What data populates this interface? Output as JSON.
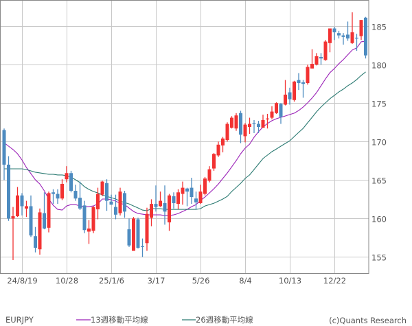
{
  "chart_data": {
    "type": "candlestick",
    "symbol": "EURJPY",
    "period": "weekly",
    "colors": {
      "up": "#f23232",
      "down": "#4d8bc0",
      "ma13": "#9b22b8",
      "ma26": "#2b7a72",
      "grid": "#c8c8c8"
    },
    "ylim": [
      152.9,
      188.4
    ],
    "y_ticks": [
      155,
      160,
      165,
      170,
      175,
      180,
      185
    ],
    "x_ticks": [
      {
        "date": "2024-08-19",
        "label": "24/8/19"
      },
      {
        "date": "2024-10-28",
        "label": "10/28"
      },
      {
        "date": "2025-01-06",
        "label": "25/1/6"
      },
      {
        "date": "2025-03-17",
        "label": "3/17"
      },
      {
        "date": "2025-05-26",
        "label": "5/26"
      },
      {
        "date": "2025-08-04",
        "label": "8/4"
      },
      {
        "date": "2025-10-13",
        "label": "10/13"
      },
      {
        "date": "2025-12-22",
        "label": "12/22"
      }
    ],
    "grid": true,
    "ohlc_fields": [
      "date",
      "open",
      "high",
      "low",
      "close"
    ],
    "candles": [
      [
        "2024-07-22",
        171.5,
        171.7,
        165.0,
        167.0
      ],
      [
        "2024-07-29",
        167.0,
        168.1,
        159.7,
        160.0
      ],
      [
        "2024-08-05",
        160.0,
        161.5,
        154.6,
        160.3
      ],
      [
        "2024-08-12",
        160.3,
        164.1,
        160.2,
        163.0
      ],
      [
        "2024-08-19",
        163.0,
        163.3,
        160.4,
        161.6
      ],
      [
        "2024-08-26",
        161.3,
        162.3,
        160.2,
        161.6
      ],
      [
        "2024-09-02",
        161.6,
        163.0,
        157.6,
        157.8
      ],
      [
        "2024-09-09",
        157.7,
        158.9,
        155.6,
        156.2
      ],
      [
        "2024-09-16",
        156.0,
        161.3,
        155.3,
        160.8
      ],
      [
        "2024-09-23",
        160.7,
        163.4,
        158.6,
        158.7
      ],
      [
        "2024-09-30",
        158.8,
        163.5,
        158.2,
        163.3
      ],
      [
        "2024-10-07",
        163.4,
        163.8,
        161.9,
        163.2
      ],
      [
        "2024-10-14",
        163.2,
        163.8,
        161.9,
        162.6
      ],
      [
        "2024-10-21",
        162.6,
        165.1,
        162.4,
        164.5
      ],
      [
        "2024-10-28",
        165.1,
        166.8,
        164.7,
        165.9
      ],
      [
        "2024-11-04",
        165.9,
        166.2,
        163.4,
        163.6
      ],
      [
        "2024-11-11",
        163.6,
        164.4,
        162.3,
        162.6
      ],
      [
        "2024-11-18",
        162.7,
        164.8,
        161.1,
        161.3
      ],
      [
        "2024-11-25",
        161.7,
        162.3,
        158.1,
        158.5
      ],
      [
        "2024-12-02",
        158.3,
        159.8,
        156.7,
        158.7
      ],
      [
        "2024-12-09",
        158.4,
        161.6,
        158.1,
        161.5
      ],
      [
        "2024-12-16",
        161.2,
        164.0,
        159.9,
        163.2
      ],
      [
        "2024-12-23",
        163.1,
        164.9,
        162.9,
        164.8
      ],
      [
        "2024-12-30",
        164.6,
        165.1,
        161.0,
        162.3
      ],
      [
        "2025-01-06",
        162.2,
        163.1,
        161.8,
        161.8
      ],
      [
        "2025-01-13",
        161.5,
        163.1,
        159.9,
        160.5
      ],
      [
        "2025-01-20",
        160.7,
        164.0,
        160.4,
        163.5
      ],
      [
        "2025-01-27",
        163.3,
        163.6,
        160.1,
        160.9
      ],
      [
        "2025-02-03",
        158.6,
        160.0,
        156.3,
        156.5
      ],
      [
        "2025-02-10",
        155.8,
        160.2,
        155.8,
        160.0
      ],
      [
        "2025-02-17",
        159.9,
        160.1,
        156.1,
        156.2
      ],
      [
        "2025-02-24",
        156.4,
        157.4,
        155.0,
        156.3
      ],
      [
        "2025-03-03",
        156.8,
        161.4,
        155.8,
        160.6
      ],
      [
        "2025-03-10",
        160.1,
        162.5,
        159.0,
        161.9
      ],
      [
        "2025-03-17",
        161.9,
        164.3,
        160.9,
        161.5
      ],
      [
        "2025-03-24",
        161.6,
        163.5,
        161.5,
        162.3
      ],
      [
        "2025-03-31",
        162.0,
        164.3,
        159.2,
        160.9
      ],
      [
        "2025-04-07",
        159.5,
        163.2,
        158.4,
        163.0
      ],
      [
        "2025-04-14",
        162.9,
        163.4,
        161.3,
        162.0
      ],
      [
        "2025-04-21",
        161.9,
        163.8,
        161.2,
        163.4
      ],
      [
        "2025-04-28",
        163.2,
        164.8,
        161.8,
        164.0
      ],
      [
        "2025-05-05",
        163.9,
        164.0,
        161.6,
        163.5
      ],
      [
        "2025-05-12",
        164.0,
        165.3,
        161.9,
        162.8
      ],
      [
        "2025-05-19",
        162.6,
        163.5,
        161.2,
        162.1
      ],
      [
        "2025-05-26",
        162.0,
        164.4,
        161.9,
        163.5
      ],
      [
        "2025-06-02",
        163.2,
        165.4,
        163.0,
        165.2
      ],
      [
        "2025-06-09",
        164.9,
        166.8,
        164.7,
        166.4
      ],
      [
        "2025-06-16",
        166.5,
        168.5,
        166.2,
        168.4
      ],
      [
        "2025-06-23",
        168.2,
        170.0,
        168.0,
        169.6
      ],
      [
        "2025-06-30",
        169.5,
        170.6,
        168.6,
        170.4
      ],
      [
        "2025-07-07",
        170.2,
        172.5,
        170.0,
        172.3
      ],
      [
        "2025-07-14",
        171.8,
        173.3,
        171.7,
        173.1
      ],
      [
        "2025-07-21",
        171.7,
        173.7,
        171.4,
        173.4
      ],
      [
        "2025-07-28",
        173.7,
        174.0,
        169.8,
        170.9
      ],
      [
        "2025-08-04",
        170.7,
        172.4,
        169.9,
        172.2
      ],
      [
        "2025-08-11",
        171.9,
        173.1,
        171.0,
        172.3
      ],
      [
        "2025-08-18",
        172.4,
        172.8,
        171.1,
        172.3
      ],
      [
        "2025-08-25",
        172.3,
        172.7,
        171.1,
        171.9
      ],
      [
        "2025-09-01",
        171.8,
        173.5,
        171.8,
        172.8
      ],
      [
        "2025-09-08",
        172.9,
        173.6,
        171.7,
        173.0
      ],
      [
        "2025-09-15",
        173.1,
        174.6,
        172.9,
        173.9
      ],
      [
        "2025-09-22",
        173.7,
        175.1,
        173.6,
        175.0
      ],
      [
        "2025-09-29",
        174.9,
        175.0,
        172.3,
        173.2
      ],
      [
        "2025-10-06",
        174.8,
        178.0,
        174.7,
        176.1
      ],
      [
        "2025-10-13",
        176.4,
        177.0,
        174.8,
        175.5
      ],
      [
        "2025-10-20",
        175.4,
        177.9,
        175.2,
        177.8
      ],
      [
        "2025-10-27",
        178.0,
        178.9,
        176.7,
        177.6
      ],
      [
        "2025-11-03",
        177.7,
        178.0,
        175.7,
        177.5
      ],
      [
        "2025-11-10",
        177.6,
        180.0,
        177.4,
        179.7
      ],
      [
        "2025-11-17",
        179.5,
        182.0,
        179.5,
        180.1
      ],
      [
        "2025-11-24",
        180.0,
        181.5,
        179.9,
        181.1
      ],
      [
        "2025-12-01",
        181.0,
        181.5,
        180.0,
        180.8
      ],
      [
        "2025-12-08",
        180.6,
        183.2,
        180.5,
        183.0
      ],
      [
        "2025-12-15",
        182.8,
        184.7,
        181.6,
        184.7
      ],
      [
        "2025-12-22",
        184.7,
        184.9,
        183.2,
        184.2
      ],
      [
        "2025-12-29",
        184.1,
        184.4,
        183.4,
        183.8
      ],
      [
        "2026-01-05",
        183.8,
        184.1,
        182.6,
        183.6
      ],
      [
        "2026-01-12",
        183.9,
        185.6,
        183.1,
        183.4
      ],
      [
        "2026-01-19",
        182.8,
        186.8,
        182.7,
        184.2
      ],
      [
        "2026-01-26",
        183.5,
        184.0,
        181.8,
        183.4
      ],
      [
        "2026-02-02",
        183.7,
        185.8,
        183.2,
        185.8
      ],
      [
        "2026-02-09",
        186.1,
        186.2,
        180.8,
        181.2
      ]
    ],
    "series": [
      {
        "name": "13週移動平均線",
        "values": [
          169.85,
          169.4,
          168.96,
          168.42,
          167.62,
          166.63,
          165.83,
          165.03,
          164.49,
          163.6,
          162.53,
          161.72,
          161.19,
          161.1,
          161.63,
          161.81,
          161.81,
          161.63,
          161.54,
          161.54,
          161.63,
          161.9,
          162.53,
          162.53,
          162.44,
          162.26,
          161.99,
          161.81,
          161.36,
          160.92,
          160.65,
          160.56,
          160.47,
          160.47,
          160.47,
          160.47,
          160.38,
          160.38,
          160.47,
          160.65,
          160.92,
          161.19,
          161.54,
          161.81,
          162.35,
          162.79,
          163.33,
          163.87,
          164.49,
          165.21,
          165.92,
          166.72,
          167.53,
          168.42,
          169.14,
          169.67,
          170.56,
          171.28,
          171.9,
          172.35,
          172.71,
          172.97,
          173.15,
          173.33,
          173.51,
          173.69,
          174.04,
          174.49,
          175.03,
          175.66,
          176.37,
          177.26,
          178.15,
          178.96,
          179.49,
          180.12,
          180.65,
          181.28,
          181.9,
          182.17,
          182.97,
          183.06
        ]
      },
      {
        "name": "26週移動平均線",
        "values": [
          166.46,
          166.46,
          166.46,
          166.46,
          166.46,
          166.37,
          166.19,
          166.02,
          165.93,
          165.84,
          165.75,
          165.75,
          165.66,
          165.66,
          165.57,
          165.39,
          165.03,
          164.67,
          164.14,
          163.78,
          163.51,
          163.33,
          163.06,
          162.88,
          162.71,
          162.53,
          162.26,
          162.08,
          161.9,
          161.63,
          161.37,
          161.1,
          161.01,
          161.28,
          161.28,
          161.28,
          161.19,
          161.19,
          161.19,
          161.19,
          161.19,
          161.19,
          161.19,
          161.19,
          161.28,
          161.63,
          161.81,
          161.99,
          162.26,
          162.53,
          162.88,
          163.51,
          164.04,
          164.58,
          165.21,
          165.66,
          166.37,
          167.08,
          167.8,
          168.24,
          168.69,
          169.04,
          169.4,
          169.76,
          170.11,
          170.65,
          171.19,
          171.72,
          172.44,
          173.15,
          173.87,
          174.49,
          175.03,
          175.57,
          176.01,
          176.46,
          176.81,
          177.26,
          177.62,
          178.06,
          178.6,
          179.05
        ]
      }
    ]
  },
  "legend": {
    "symbol": "EURJPY",
    "ma13_label": "13週移動平均線",
    "ma26_label": "26週移動平均線",
    "copyright": "(c)Quants Research"
  }
}
